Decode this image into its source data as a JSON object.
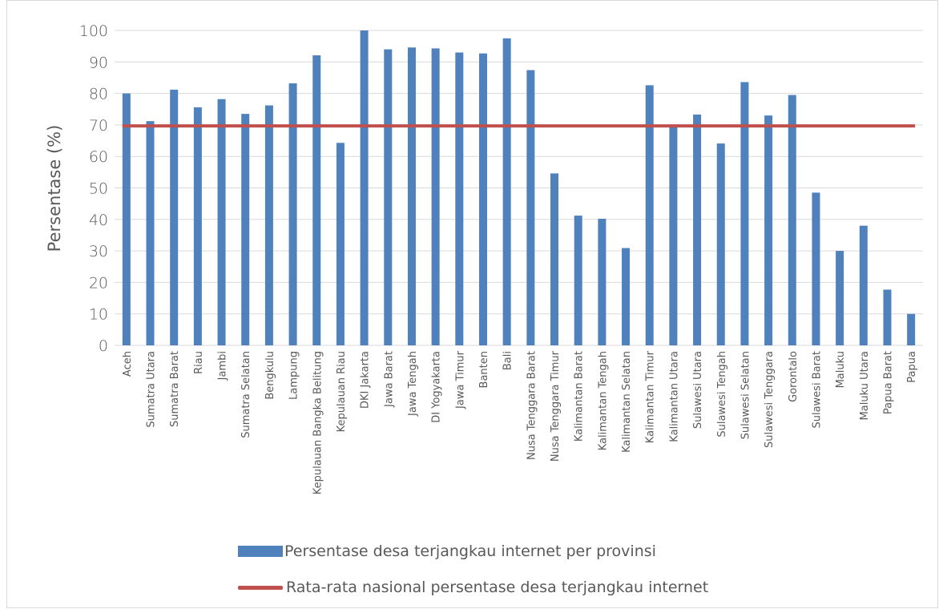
{
  "chart_data": {
    "type": "bar",
    "title": "",
    "xlabel": "",
    "ylabel": "Persentase (%)",
    "ylim": [
      0,
      100
    ],
    "yticks": [
      0,
      10,
      20,
      30,
      40,
      50,
      60,
      70,
      80,
      90,
      100
    ],
    "grid": "horizontal",
    "legend_position": "bottom",
    "categories": [
      "Aceh",
      "Sumatra Utara",
      "Sumatra Barat",
      "Riau",
      "Jambi",
      "Sumatra Selatan",
      "Bengkulu",
      "Lampung",
      "Kepulauan Bangka Belitung",
      "Kepulauan Riau",
      "DKI Jakarta",
      "Jawa Barat",
      "Jawa Tengah",
      "DI Yogyakarta",
      "Jawa Timur",
      "Banten",
      "Bali",
      "Nusa Tenggara Barat",
      "Nusa Tenggara Timur",
      "Kalimantan Barat",
      "Kalimantan Tengah",
      "Kalimantan Selatan",
      "Kalimantan Timur",
      "Kalimantan Utara",
      "Sulawesi Utara",
      "Sulawesi Tengah",
      "Sulawesi Selatan",
      "Sulawesi Tenggara",
      "Gorontalo",
      "Sulawesi Barat",
      "Maluku",
      "Maluku Utara",
      "Papua Barat",
      "Papua"
    ],
    "series": [
      {
        "name": "Persentase desa terjangkau internet per provinsi",
        "type": "bar",
        "color": "#4f81bd",
        "values": [
          80.0,
          71.2,
          81.2,
          75.6,
          78.2,
          73.5,
          76.2,
          83.2,
          92.1,
          64.3,
          100.0,
          94.0,
          94.6,
          94.3,
          93.0,
          92.7,
          97.5,
          87.4,
          54.6,
          41.2,
          40.2,
          30.9,
          82.6,
          69.5,
          73.3,
          64.1,
          83.6,
          73.0,
          79.5,
          48.5,
          30.0,
          38.0,
          17.7,
          10.0
        ]
      },
      {
        "name": "Rata-rata nasional persentase desa terjangkau internet",
        "type": "line",
        "color": "#c0504d",
        "value": 69.7
      }
    ]
  }
}
